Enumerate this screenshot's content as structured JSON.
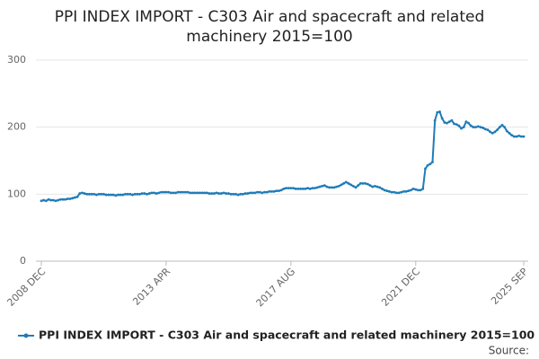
{
  "chart_data": {
    "type": "line",
    "title": [
      "PPI INDEX IMPORT - C303 Air and spacecraft and related",
      "machinery 2015=100"
    ],
    "source_label": "Source:",
    "categories": [
      "2008 DEC",
      null,
      null,
      null,
      null,
      null,
      null,
      null,
      null,
      null,
      null,
      null,
      null,
      null,
      null,
      null,
      null,
      null,
      null,
      null,
      null,
      null,
      null,
      null,
      null,
      null,
      null,
      null,
      null,
      null,
      null,
      null,
      null,
      null,
      null,
      null,
      null,
      null,
      null,
      null,
      null,
      null,
      null,
      null,
      null,
      null,
      null,
      null,
      null,
      null,
      null,
      null,
      "2013 APR",
      null,
      null,
      null,
      null,
      null,
      null,
      null,
      null,
      null,
      null,
      null,
      null,
      null,
      null,
      null,
      null,
      null,
      null,
      null,
      null,
      null,
      null,
      null,
      null,
      null,
      null,
      null,
      null,
      null,
      null,
      null,
      null,
      null,
      null,
      null,
      null,
      null,
      null,
      null,
      null,
      null,
      null,
      null,
      null,
      null,
      null,
      null,
      null,
      null,
      null,
      null,
      "2017 AUG",
      null,
      null,
      null,
      null,
      null,
      null,
      null,
      null,
      null,
      null,
      null,
      null,
      null,
      null,
      null,
      null,
      null,
      null,
      null,
      null,
      null,
      null,
      null,
      null,
      null,
      null,
      null,
      null,
      null,
      null,
      null,
      null,
      null,
      null,
      null,
      null,
      null,
      null,
      null,
      null,
      null,
      null,
      null,
      null,
      null,
      null,
      null,
      null,
      null,
      null,
      null,
      "2021 DEC",
      null,
      null,
      null,
      null,
      null,
      null,
      null,
      null,
      null,
      null,
      null,
      null,
      null,
      null,
      null,
      null,
      null,
      null,
      null,
      null,
      null,
      null,
      null,
      null,
      null,
      null,
      null,
      null,
      null,
      null,
      null,
      null,
      null,
      null,
      null,
      null,
      null,
      null,
      null,
      null,
      null,
      null,
      null,
      null,
      "2025 SEP"
    ],
    "series": [
      {
        "name": "PPI INDEX IMPORT - C303 Air and spacecraft and related machinery 2015=100",
        "color": "#1f7cb8",
        "values": [
          90,
          91,
          90,
          92,
          91,
          91,
          90,
          91,
          92,
          92,
          92,
          93,
          93,
          94,
          95,
          96,
          101,
          102,
          101,
          100,
          100,
          100,
          100,
          99,
          100,
          100,
          100,
          99,
          99,
          99,
          99,
          98,
          99,
          99,
          99,
          100,
          100,
          100,
          99,
          100,
          100,
          100,
          101,
          101,
          100,
          101,
          102,
          102,
          101,
          102,
          103,
          103,
          103,
          103,
          102,
          102,
          102,
          103,
          103,
          103,
          103,
          103,
          102,
          102,
          102,
          102,
          102,
          102,
          102,
          102,
          101,
          101,
          101,
          102,
          101,
          101,
          102,
          101,
          101,
          100,
          100,
          100,
          99,
          100,
          100,
          101,
          101,
          102,
          102,
          102,
          103,
          103,
          102,
          103,
          103,
          104,
          104,
          104,
          105,
          105,
          106,
          108,
          109,
          109,
          109,
          109,
          108,
          108,
          108,
          108,
          108,
          109,
          108,
          109,
          109,
          110,
          111,
          112,
          113,
          111,
          110,
          110,
          110,
          111,
          112,
          114,
          116,
          118,
          116,
          114,
          112,
          110,
          113,
          116,
          116,
          116,
          115,
          113,
          111,
          112,
          111,
          110,
          108,
          106,
          105,
          104,
          103,
          103,
          102,
          102,
          103,
          104,
          104,
          105,
          106,
          108,
          107,
          106,
          106,
          108,
          138,
          143,
          145,
          148,
          210,
          222,
          223,
          213,
          207,
          206,
          208,
          210,
          205,
          204,
          202,
          198,
          200,
          208,
          206,
          202,
          200,
          200,
          201,
          200,
          199,
          197,
          196,
          193,
          191,
          193,
          196,
          200,
          203,
          200,
          194,
          191,
          188,
          186,
          186,
          187,
          186,
          186
        ]
      }
    ],
    "ylim": [
      0,
      300
    ],
    "yticks": [
      0,
      100,
      200,
      300
    ],
    "grid": true
  }
}
